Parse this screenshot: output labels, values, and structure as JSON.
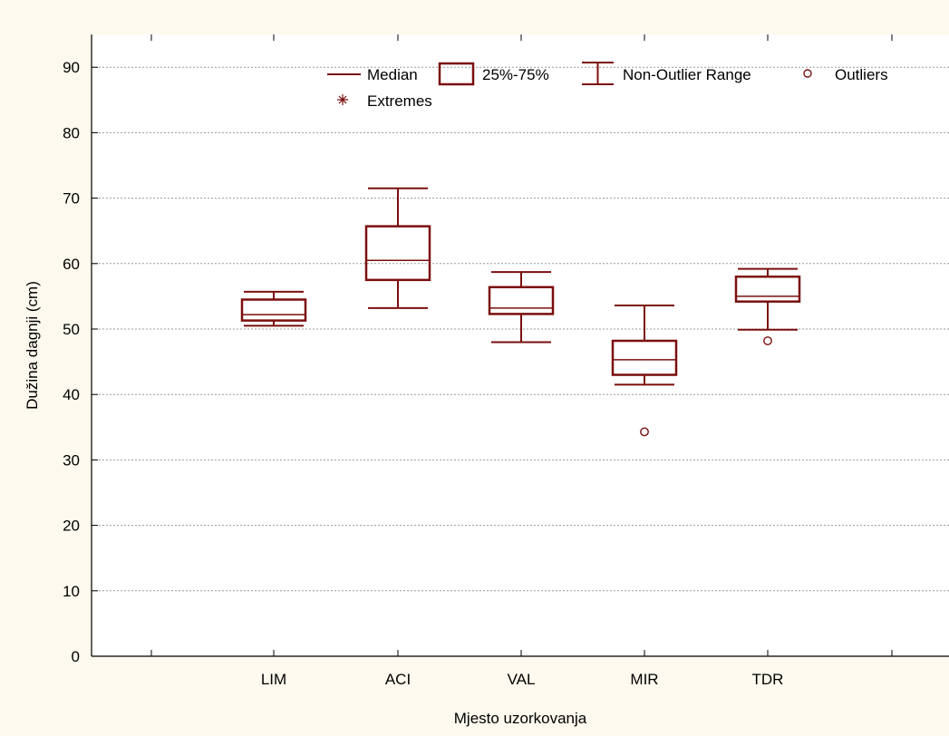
{
  "chart_data": {
    "type": "boxplot",
    "xlabel": "Mjesto uzorkovanja",
    "ylabel": "Dužina dagnji (cm)",
    "ylim": [
      0,
      95
    ],
    "yticks": [
      0,
      10,
      20,
      30,
      40,
      50,
      60,
      70,
      80,
      90
    ],
    "grid": true,
    "legend_position": "top",
    "categories": [
      "LIM",
      "ACI",
      "VAL",
      "MIR",
      "TDR"
    ],
    "boxes": [
      {
        "category": "LIM",
        "whisker_low": 50.5,
        "q1": 51.3,
        "median": 52.2,
        "q3": 54.5,
        "whisker_high": 55.7,
        "outliers": []
      },
      {
        "category": "ACI",
        "whisker_low": 53.2,
        "q1": 57.5,
        "median": 60.5,
        "q3": 65.7,
        "whisker_high": 71.5,
        "outliers": []
      },
      {
        "category": "VAL",
        "whisker_low": 48.0,
        "q1": 52.3,
        "median": 53.2,
        "q3": 56.4,
        "whisker_high": 58.7,
        "outliers": []
      },
      {
        "category": "MIR",
        "whisker_low": 41.5,
        "q1": 43.0,
        "median": 45.3,
        "q3": 48.2,
        "whisker_high": 53.6,
        "outliers": [
          34.3
        ]
      },
      {
        "category": "TDR",
        "whisker_low": 49.9,
        "q1": 54.2,
        "median": 55.0,
        "q3": 58.0,
        "whisker_high": 59.2,
        "outliers": [
          48.2
        ]
      }
    ],
    "legend": {
      "median": "Median",
      "box": "25%-75%",
      "range": "Non-Outlier Range",
      "outliers": "Outliers",
      "extremes": "Extremes"
    },
    "colors": {
      "series": "#7b0e0e",
      "background": "#fdf9ee",
      "plot_area": "#ffffff",
      "grid": "#9a9a9a",
      "axis": "#000000"
    }
  }
}
